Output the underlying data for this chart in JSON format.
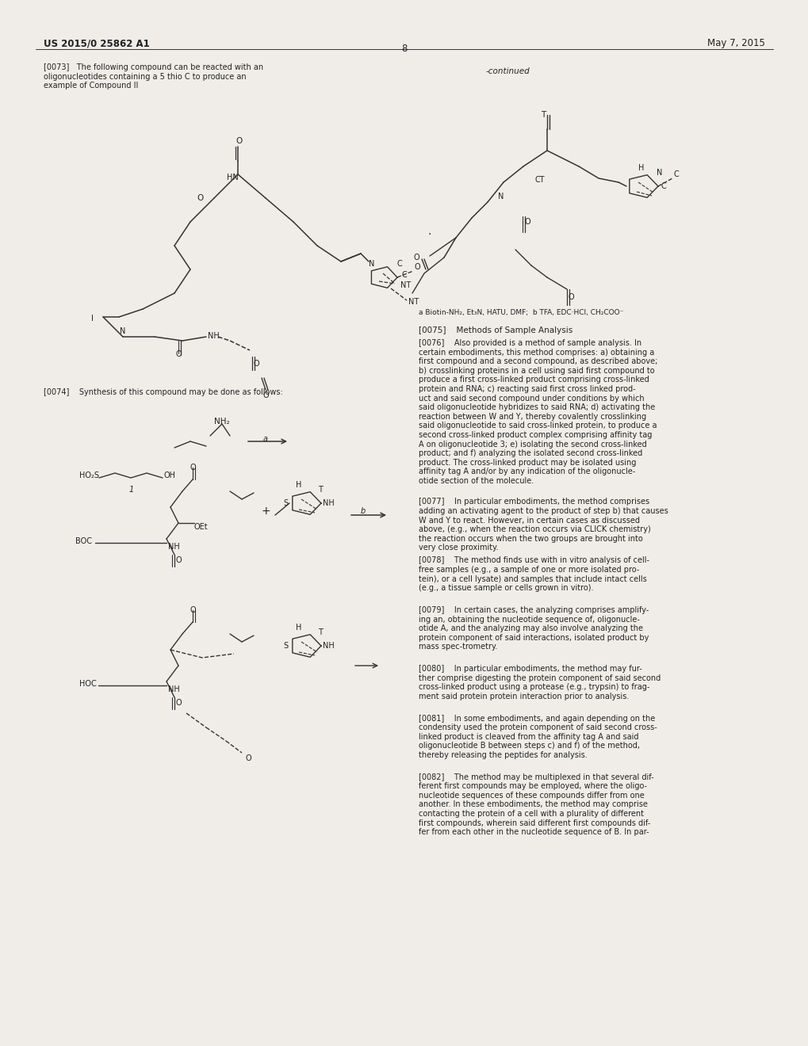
{
  "page_header_left": "US 2015/0 25862 A1",
  "page_header_right": "May 7, 2015",
  "page_number": "8",
  "background_color": "#f0ede8",
  "text_color": "#1a1a1a",
  "figsize": [
    10.2,
    13.2
  ],
  "dpi": 100,
  "continued_label": "-continued",
  "conditions_text": "a Biotin-NH₂, Et₃N, HATU, DMF;  b TFA, EDC·HCl, CH₂COO⁻",
  "para_0073": "[0073]   The following compound can be reacted with an\noligonucleotides containing a 5 thio C to produce an\nexample of Compound II",
  "para_0074": "[0074]    Synthesis of this compound may be done as follows:",
  "para_0075": "[0075]    Methods of Sample Analysis",
  "para_0076": "[0076]    Also provided is a method of sample analysis. In\ncertain embodiments, this method comprises: a) obtaining a\nfirst compound and a second compound, as described above;\nb) crosslinking proteins in a cell using said first compound to\nproduce a first cross-linked product comprising cross-linked\nprotein and RNA; c) reacting said first cross linked prod-\nuct and said second compound under conditions by which\nsaid oligonucleotide hybridizes to said RNA; d) activating the\nreaction between W and Y, thereby covalently crosslinking\nsaid oligonucleotide to said cross-linked protein, to produce a\nsecond cross-linked product complex comprising affinity tag\nA on oligonucleotide 3; e) isolating the second cross-linked\nproduct; and f) analyzing the isolated second cross-linked\nproduct. The cross-linked product may be isolated using\naffinity tag A and/or by any indication of the oligonucle-\notide section of the molecule.",
  "para_0077": "[0077]    In particular embodiments, the method comprises\nadding an activating agent to the product of step b) that causes\nW and Y to react. However, in certain cases as discussed\nabove, (e.g., when the reaction occurs via CLICK chemistry)\nthe reaction occurs when the two groups are brought into\nvery close proximity.",
  "para_0078": "[0078]    The method finds use with in vitro analysis of cell-\nfree samples (e.g., a sample of one or more isolated pro-\ntein), or a cell lysate) and samples that include intact cells\n(e.g., a tissue sample or cells grown in vitro).",
  "para_0079": "[0079]    In certain cases, the analyzing comprises amplify-\ning an, obtaining the nucleotide sequence of, oligonucle-\notide A, and the analyzing may also involve analyzing the\nprotein component of said interactions, isolated product by\nmass spec-trometry.",
  "para_0080": "[0080]    In particular embodiments, the method may fur-\nther comprise digesting the protein component of said second\ncross-linked product using a protease (e.g., trypsin) to frag-\nment said protein protein interaction prior to analysis.",
  "para_0081": "[0081]    In some embodiments, and again depending on the\ncondensity used the protein component of said second cross-\nlinked product is cleaved from the affinity tag A and said\noligonucleotide B between steps c) and f) of the method,\nthereby releasing the peptides for analysis.",
  "para_0082": "[0082]    The method may be multiplexed in that several dif-\nferent first compounds may be employed, where the oligo-\nnucleotide sequences of these compounds differ from one\nanother. In these embodiments, the method may comprise\ncontacting the protein of a cell with a plurality of different\nfirst compounds, wherein said different first compounds dif-\nfer from each other in the nucleotide sequence of B. In par-"
}
